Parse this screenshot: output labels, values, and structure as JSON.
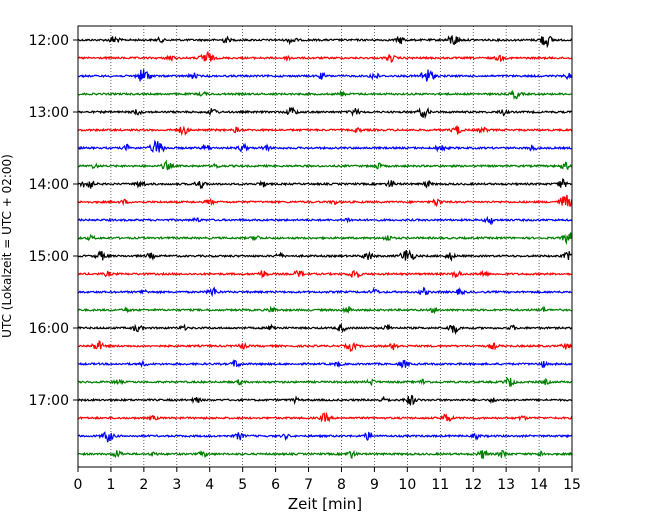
{
  "chart_data": {
    "type": "line",
    "title": "",
    "xlabel": "Zeit  [min]",
    "ylabel": "UTC (Lokalzeit = UTC + 02:00)",
    "xlim": [
      0,
      15
    ],
    "x_ticks": [
      "0",
      "1",
      "2",
      "3",
      "4",
      "5",
      "6",
      "7",
      "8",
      "9",
      "10",
      "11",
      "12",
      "13",
      "14",
      "15"
    ],
    "y_hour_labels": [
      "12:00",
      "13:00",
      "14:00",
      "15:00",
      "16:00",
      "17:00"
    ],
    "grid_x": true,
    "trace_colors": [
      "#000000",
      "#ff0000",
      "#0000ff",
      "#008000"
    ],
    "traces": [
      {
        "start_utc": "12:00",
        "events": [
          [
            1.1,
            0.6
          ],
          [
            2.5,
            0.3
          ],
          [
            4.5,
            0.4
          ],
          [
            6.5,
            0.5
          ],
          [
            9.8,
            0.5
          ],
          [
            11.4,
            0.8
          ],
          [
            14.2,
            0.9
          ]
        ]
      },
      {
        "start_utc": "12:15",
        "events": [
          [
            2.8,
            0.4
          ],
          [
            3.9,
            0.9
          ],
          [
            6.4,
            0.3
          ],
          [
            9.5,
            0.5
          ],
          [
            12.8,
            0.4
          ]
        ]
      },
      {
        "start_utc": "12:30",
        "events": [
          [
            2.0,
            1.0
          ],
          [
            3.5,
            0.4
          ],
          [
            7.4,
            0.4
          ],
          [
            9.0,
            0.5
          ],
          [
            10.6,
            1.0
          ],
          [
            14.9,
            0.4
          ]
        ]
      },
      {
        "start_utc": "12:45",
        "events": [
          [
            3.8,
            0.3
          ],
          [
            8.0,
            0.3
          ],
          [
            13.3,
            0.6
          ]
        ]
      },
      {
        "start_utc": "13:00",
        "events": [
          [
            1.8,
            0.4
          ],
          [
            4.1,
            0.5
          ],
          [
            6.5,
            0.6
          ],
          [
            8.4,
            0.5
          ],
          [
            10.5,
            0.7
          ],
          [
            12.9,
            0.4
          ]
        ]
      },
      {
        "start_utc": "13:15",
        "events": [
          [
            3.2,
            0.6
          ],
          [
            4.8,
            0.3
          ],
          [
            8.5,
            0.3
          ],
          [
            11.5,
            0.6
          ],
          [
            12.3,
            0.4
          ]
        ]
      },
      {
        "start_utc": "13:30",
        "events": [
          [
            1.5,
            0.4
          ],
          [
            2.4,
            1.0
          ],
          [
            3.9,
            0.4
          ],
          [
            5.0,
            0.5
          ],
          [
            5.7,
            0.4
          ],
          [
            11.0,
            0.5
          ],
          [
            13.8,
            0.4
          ]
        ]
      },
      {
        "start_utc": "13:45",
        "events": [
          [
            0.5,
            0.3
          ],
          [
            2.7,
            0.6
          ],
          [
            4.2,
            0.3
          ],
          [
            9.1,
            0.4
          ],
          [
            14.8,
            0.5
          ]
        ]
      },
      {
        "start_utc": "14:00",
        "events": [
          [
            0.3,
            0.8
          ],
          [
            1.9,
            0.5
          ],
          [
            3.7,
            0.6
          ],
          [
            5.6,
            0.4
          ],
          [
            9.5,
            0.5
          ],
          [
            10.6,
            0.4
          ],
          [
            14.7,
            0.6
          ]
        ]
      },
      {
        "start_utc": "14:15",
        "events": [
          [
            1.4,
            0.3
          ],
          [
            4.0,
            0.4
          ],
          [
            7.8,
            0.3
          ],
          [
            10.9,
            0.5
          ],
          [
            14.8,
            1.0
          ]
        ]
      },
      {
        "start_utc": "14:30",
        "events": [
          [
            3.6,
            0.3
          ],
          [
            8.2,
            0.3
          ],
          [
            12.5,
            0.5
          ]
        ]
      },
      {
        "start_utc": "14:45",
        "events": [
          [
            0.4,
            0.3
          ],
          [
            5.4,
            0.4
          ],
          [
            9.4,
            0.4
          ],
          [
            14.9,
            0.8
          ]
        ]
      },
      {
        "start_utc": "15:00",
        "events": [
          [
            0.7,
            0.6
          ],
          [
            2.2,
            0.4
          ],
          [
            6.1,
            0.4
          ],
          [
            8.8,
            0.6
          ],
          [
            10.0,
            1.0
          ],
          [
            11.3,
            0.5
          ],
          [
            14.9,
            0.6
          ]
        ]
      },
      {
        "start_utc": "15:15",
        "events": [
          [
            0.9,
            0.3
          ],
          [
            5.6,
            0.5
          ],
          [
            6.7,
            0.5
          ],
          [
            8.4,
            0.7
          ],
          [
            11.5,
            0.5
          ],
          [
            12.3,
            0.4
          ]
        ]
      },
      {
        "start_utc": "15:30",
        "events": [
          [
            2.0,
            0.3
          ],
          [
            4.1,
            0.6
          ],
          [
            9.0,
            0.4
          ],
          [
            10.5,
            0.5
          ],
          [
            11.6,
            0.4
          ]
        ]
      },
      {
        "start_utc": "15:45",
        "events": [
          [
            1.5,
            0.3
          ],
          [
            5.9,
            0.4
          ],
          [
            8.2,
            0.5
          ],
          [
            10.8,
            0.3
          ],
          [
            14.1,
            0.3
          ]
        ]
      },
      {
        "start_utc": "16:00",
        "events": [
          [
            1.8,
            0.5
          ],
          [
            3.2,
            0.3
          ],
          [
            5.9,
            0.4
          ],
          [
            8.0,
            0.5
          ],
          [
            9.4,
            0.4
          ],
          [
            11.4,
            0.7
          ],
          [
            13.2,
            0.3
          ]
        ]
      },
      {
        "start_utc": "16:15",
        "events": [
          [
            0.6,
            0.7
          ],
          [
            5.0,
            0.4
          ],
          [
            8.3,
            0.6
          ],
          [
            9.6,
            0.5
          ],
          [
            12.6,
            0.4
          ],
          [
            14.8,
            0.4
          ]
        ]
      },
      {
        "start_utc": "16:30",
        "events": [
          [
            2.0,
            0.3
          ],
          [
            4.8,
            0.5
          ],
          [
            7.9,
            0.3
          ],
          [
            9.9,
            0.5
          ],
          [
            14.1,
            0.4
          ]
        ]
      },
      {
        "start_utc": "16:45",
        "events": [
          [
            1.2,
            0.3
          ],
          [
            4.9,
            0.3
          ],
          [
            8.9,
            0.4
          ],
          [
            10.5,
            0.4
          ],
          [
            13.1,
            0.6
          ],
          [
            14.2,
            0.3
          ]
        ]
      },
      {
        "start_utc": "17:00",
        "events": [
          [
            3.6,
            0.4
          ],
          [
            6.6,
            0.3
          ],
          [
            9.3,
            0.4
          ],
          [
            10.1,
            0.7
          ],
          [
            12.6,
            0.3
          ]
        ]
      },
      {
        "start_utc": "17:15",
        "events": [
          [
            2.3,
            0.3
          ],
          [
            7.5,
            0.6
          ],
          [
            11.2,
            0.6
          ],
          [
            13.5,
            0.3
          ]
        ]
      },
      {
        "start_utc": "17:30",
        "events": [
          [
            0.9,
            0.8
          ],
          [
            4.9,
            0.5
          ],
          [
            6.3,
            0.3
          ],
          [
            8.8,
            0.5
          ],
          [
            12.1,
            0.3
          ]
        ]
      },
      {
        "start_utc": "17:45",
        "events": [
          [
            1.2,
            0.5
          ],
          [
            2.3,
            0.3
          ],
          [
            3.8,
            0.4
          ],
          [
            8.3,
            0.5
          ],
          [
            12.3,
            0.6
          ],
          [
            12.9,
            0.5
          ],
          [
            14.1,
            0.4
          ]
        ]
      }
    ]
  }
}
